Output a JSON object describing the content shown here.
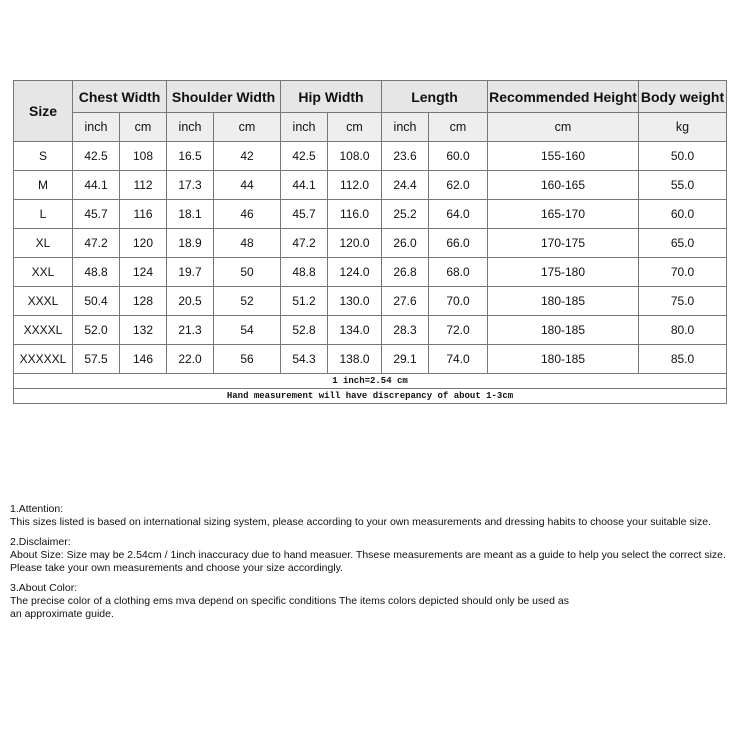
{
  "table": {
    "headers": [
      "Size",
      "Chest Width",
      "Shoulder Width",
      "Hip Width",
      "Length",
      "Recommended Height",
      "Body weight"
    ],
    "units": [
      "inch",
      "cm",
      "inch",
      "cm",
      "inch",
      "cm",
      "inch",
      "cm",
      "cm",
      "kg"
    ],
    "rows": [
      [
        "S",
        "42.5",
        "108",
        "16.5",
        "42",
        "42.5",
        "108.0",
        "23.6",
        "60.0",
        "155-160",
        "50.0"
      ],
      [
        "M",
        "44.1",
        "112",
        "17.3",
        "44",
        "44.1",
        "112.0",
        "24.4",
        "62.0",
        "160-165",
        "55.0"
      ],
      [
        "L",
        "45.7",
        "116",
        "18.1",
        "46",
        "45.7",
        "116.0",
        "25.2",
        "64.0",
        "165-170",
        "60.0"
      ],
      [
        "XL",
        "47.2",
        "120",
        "18.9",
        "48",
        "47.2",
        "120.0",
        "26.0",
        "66.0",
        "170-175",
        "65.0"
      ],
      [
        "XXL",
        "48.8",
        "124",
        "19.7",
        "50",
        "48.8",
        "124.0",
        "26.8",
        "68.0",
        "175-180",
        "70.0"
      ],
      [
        "XXXL",
        "50.4",
        "128",
        "20.5",
        "52",
        "51.2",
        "130.0",
        "27.6",
        "70.0",
        "180-185",
        "75.0"
      ],
      [
        "XXXXL",
        "52.0",
        "132",
        "21.3",
        "54",
        "52.8",
        "134.0",
        "28.3",
        "72.0",
        "180-185",
        "80.0"
      ],
      [
        "XXXXXL",
        "57.5",
        "146",
        "22.0",
        "56",
        "54.3",
        "138.0",
        "29.1",
        "74.0",
        "180-185",
        "85.0"
      ]
    ],
    "conversion": "1 inch=2.54 cm",
    "discrepancy": "Hand measurement will have discrepancy of about 1-3cm"
  },
  "notes": [
    {
      "title": "1.Attention:",
      "lines": [
        "This sizes listed is based on international sizing system, please according to your own measurements and dressing habits to choose your suitable size."
      ]
    },
    {
      "title": "2.Disclaimer:",
      "lines": [
        "About Size: Size may be 2.54cm / 1inch inaccuracy due to hand measuer. Thsese measurements are meant as a guide to help you select the correct size.",
        "Please take your own measurements and choose your size accordingly."
      ]
    },
    {
      "title": "3.About Color:",
      "lines": [
        "The precise color of a clothing ems mva depend on specific conditions The items colors depicted should only be used as",
        "an approximate guide."
      ]
    }
  ]
}
